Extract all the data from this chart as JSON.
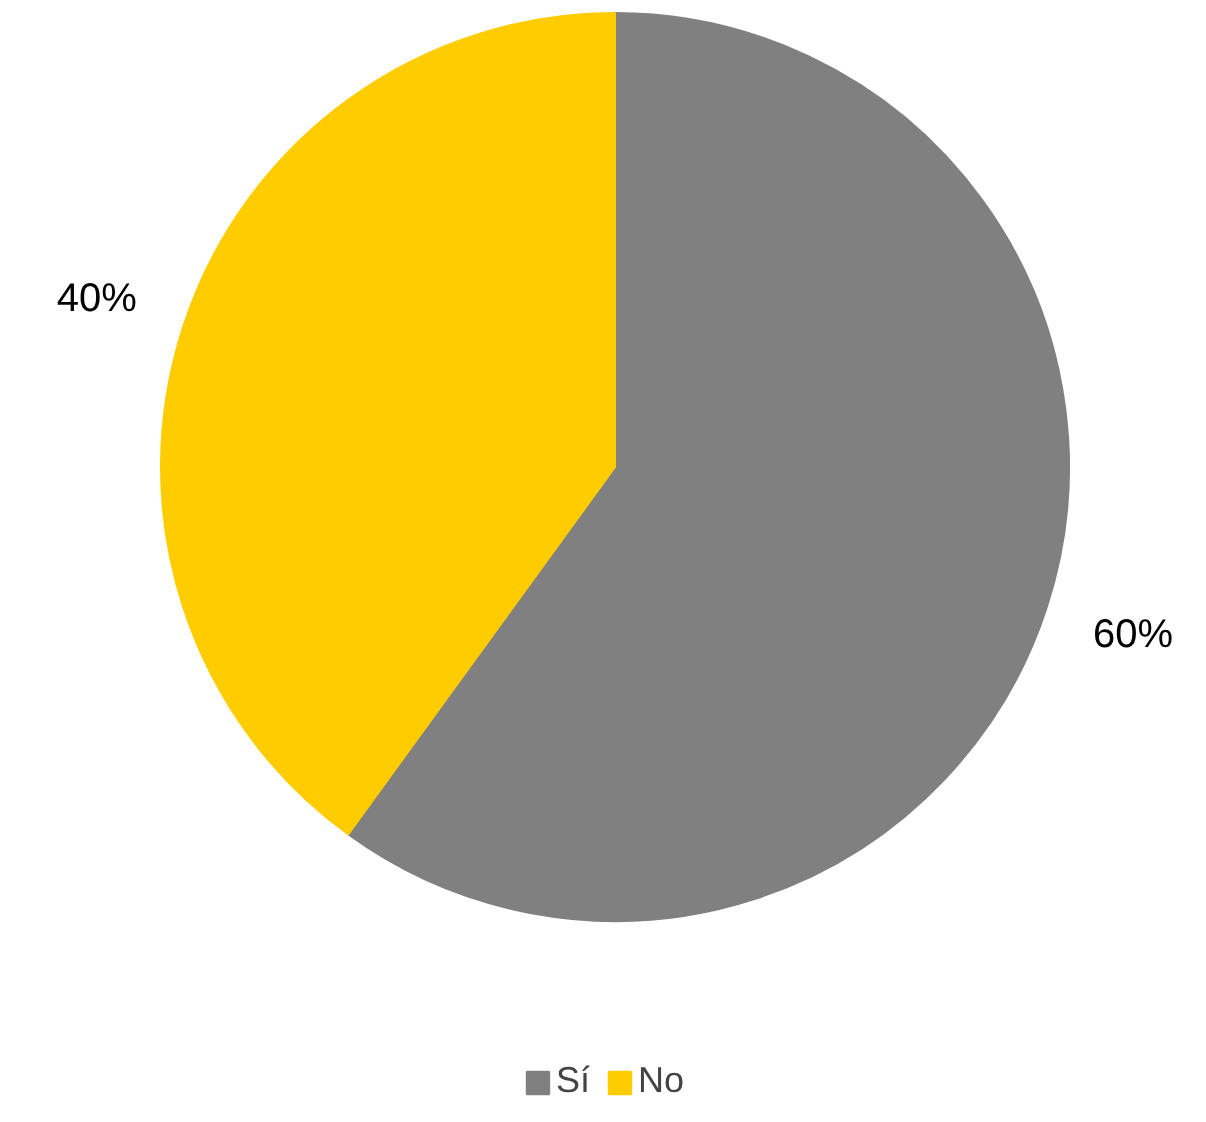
{
  "chart_data": {
    "type": "pie",
    "categories": [
      "Sí",
      "No"
    ],
    "values": [
      60,
      40
    ],
    "colors": [
      "#808080",
      "#ffcc00"
    ],
    "value_labels": [
      "60%",
      "40%"
    ],
    "legend": "bottom"
  }
}
